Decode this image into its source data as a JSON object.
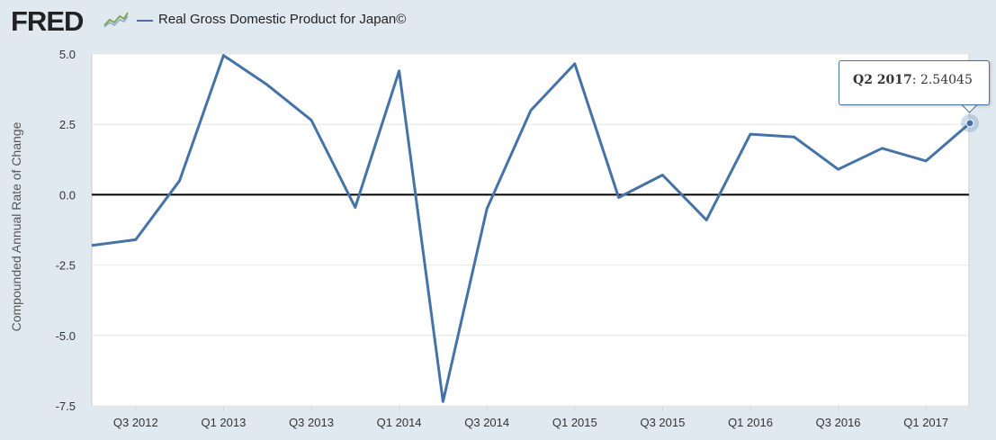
{
  "header": {
    "logo": "FRED",
    "series_title": "Real Gross Domestic Product for Japan©"
  },
  "tooltip": {
    "label": "Q2 2017",
    "value": "2.54045"
  },
  "colors": {
    "series": "#4572a7",
    "background": "#e1e9f0",
    "plot": "#ffffff"
  },
  "chart_data": {
    "type": "line",
    "title": "Real Gross Domestic Product for Japan©",
    "xlabel": "",
    "ylabel": "Compounded Annual Rate of Change",
    "ylim": [
      -7.5,
      5.0
    ],
    "y_ticks": [
      "5.0",
      "2.5",
      "0.0",
      "-2.5",
      "-5.0",
      "-7.5"
    ],
    "x_tick_labels": [
      "Q3 2012",
      "Q1 2013",
      "Q3 2013",
      "Q1 2014",
      "Q3 2014",
      "Q1 2015",
      "Q3 2015",
      "Q1 2016",
      "Q3 2016",
      "Q1 2017"
    ],
    "grid": true,
    "legend": "top-left",
    "series": [
      {
        "name": "Real Gross Domestic Product for Japan©",
        "x": [
          "Q2 2012",
          "Q3 2012",
          "Q4 2012",
          "Q1 2013",
          "Q2 2013",
          "Q3 2013",
          "Q4 2013",
          "Q1 2014",
          "Q2 2014",
          "Q3 2014",
          "Q4 2014",
          "Q1 2015",
          "Q2 2015",
          "Q3 2015",
          "Q4 2015",
          "Q1 2016",
          "Q2 2016",
          "Q3 2016",
          "Q4 2016",
          "Q1 2017",
          "Q2 2017"
        ],
        "values": [
          -1.8,
          -1.6,
          0.5,
          4.95,
          3.9,
          2.65,
          -0.45,
          4.4,
          -7.35,
          -0.5,
          3.0,
          4.65,
          -0.1,
          0.7,
          -0.9,
          2.15,
          2.05,
          0.9,
          1.65,
          1.2,
          2.54045
        ]
      }
    ]
  }
}
